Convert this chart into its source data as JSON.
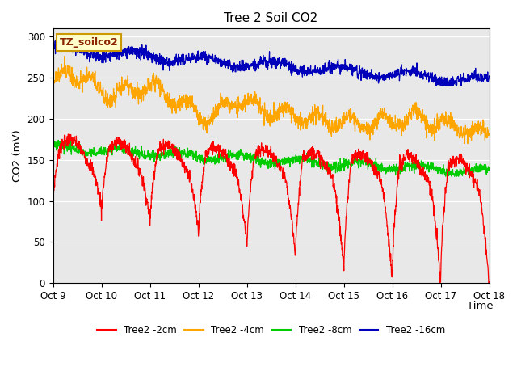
{
  "title": "Tree 2 Soil CO2",
  "ylabel": "CO2 (mV)",
  "xlabel": "Time",
  "annotation": "TZ_soilco2",
  "ylim": [
    0,
    310
  ],
  "yticks": [
    0,
    50,
    100,
    150,
    200,
    250,
    300
  ],
  "xtick_labels": [
    "Oct 9",
    "Oct 10",
    "Oct 11",
    "Oct 12",
    "Oct 13",
    "Oct 14",
    "Oct 15",
    "Oct 16",
    "Oct 17",
    "Oct 18"
  ],
  "colors": {
    "red": "#FF0000",
    "orange": "#FFA500",
    "green": "#00CC00",
    "blue": "#0000BB"
  },
  "legend_labels": [
    "Tree2 -2cm",
    "Tree2 -4cm",
    "Tree2 -8cm",
    "Tree2 -16cm"
  ],
  "bg_color": "#E8E8E8",
  "annotation_bg": "#FFFFCC",
  "annotation_border": "#CC9900"
}
